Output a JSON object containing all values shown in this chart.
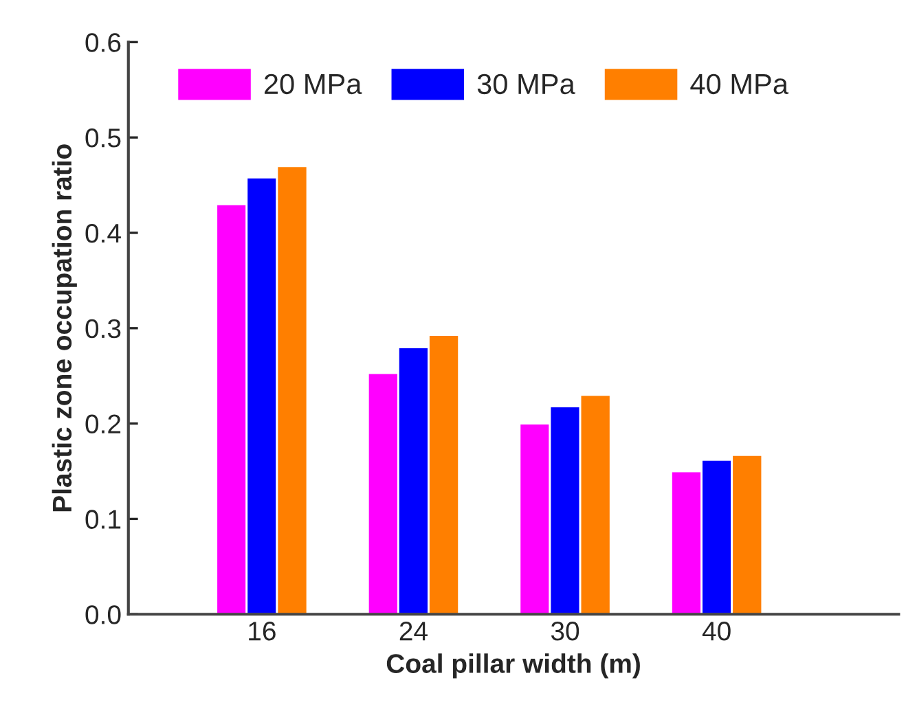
{
  "chart_data": {
    "type": "bar",
    "xlabel": "Coal pillar width (m)",
    "ylabel": "Plastic zone occupation ratio",
    "categories": [
      "16",
      "24",
      "30",
      "40"
    ],
    "series": [
      {
        "name": "20 MPa",
        "color": "#ff00ff",
        "values": [
          0.43,
          0.253,
          0.2,
          0.15
        ]
      },
      {
        "name": "30 MPa",
        "color": "#0000ff",
        "values": [
          0.458,
          0.28,
          0.218,
          0.162
        ]
      },
      {
        "name": "40 MPa",
        "color": "#ff7f00",
        "values": [
          0.47,
          0.293,
          0.23,
          0.167
        ]
      }
    ],
    "ylim": [
      0,
      0.6
    ],
    "yticks": [
      {
        "value": 0,
        "label": "0.0"
      },
      0.1,
      0.2,
      0.3,
      0.4,
      0.5,
      0.6
    ],
    "grid": false,
    "legend": "top left"
  }
}
